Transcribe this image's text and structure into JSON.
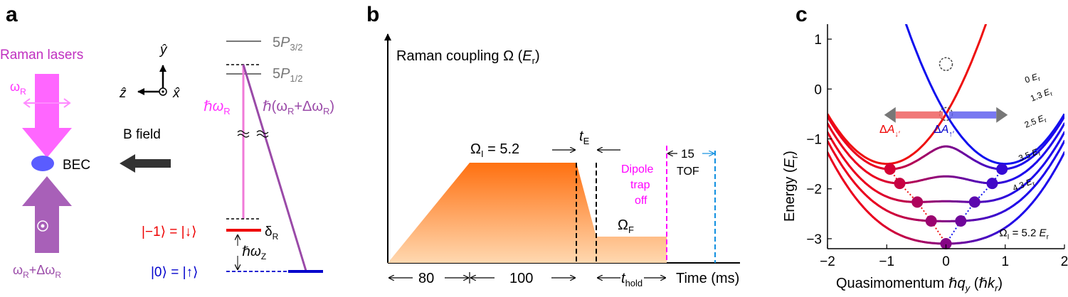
{
  "panels": {
    "a": "a",
    "b": "b",
    "c": "c"
  },
  "panel_a": {
    "raman_lasers": "Raman lasers",
    "omega_r": "ω",
    "omega_r_sub": "R",
    "bec": "BEC",
    "b_field": "B field",
    "bottom_beam_main": "ω",
    "bottom_beam_sub1": "R",
    "bottom_beam_mid": "+Δω",
    "bottom_beam_sub2": "R",
    "axis_y": "ŷ",
    "axis_z": "ẑ",
    "axis_x": "x̂",
    "level_5p32_main": "5",
    "level_5p32_italic": "P",
    "level_5p32_sub": "3/2",
    "level_5p12_main": "5",
    "level_5p12_italic": "P",
    "level_5p12_sub": "1/2",
    "hbar_omega_r": "ℏω",
    "hbar_omega_r_sub": "R",
    "hbar_omega_dr_a": "ℏ(ω",
    "hbar_omega_dr_sub1": "R",
    "hbar_omega_dr_b": "+Δω",
    "hbar_omega_dr_sub2": "R",
    "hbar_omega_dr_c": ")",
    "delta_r": "δ",
    "delta_r_sub": "R",
    "hbar_omega_z": "ℏω",
    "hbar_omega_z_sub": "Z",
    "state_minus1": "|−1⟩ = |↓⟩",
    "state_zero": "|0⟩ = |↑⟩",
    "colors": {
      "magenta": "#ff44ff",
      "purple": "#9a4aa8",
      "red": "#ee0000",
      "blue": "#0000cc",
      "bec": "#5a5cff",
      "gray": "#777777"
    }
  },
  "panel_b": {
    "ylabel": "Raman coupling Ω (",
    "ylabel_unit": "E",
    "ylabel_unit_sub": "r",
    "ylabel_close": ")",
    "omega_i_main": "Ω",
    "omega_i_sub": "I",
    "omega_i_val": " = 5.2",
    "t_e": "t",
    "t_e_sub": "E",
    "omega_f": "Ω",
    "omega_f_sub": "F",
    "dipole_line1": "Dipole",
    "dipole_line2": "trap",
    "dipole_line3": "off",
    "tof_val": "15",
    "tof": "TOF",
    "dur1": "80",
    "dur2": "100",
    "t_hold": "t",
    "t_hold_sub": "hold",
    "xlabel": "Time (ms)",
    "colors": {
      "ramp_top": "#ff7010",
      "ramp_bottom": "#ffd8b0",
      "dipole": "#ff00ff",
      "tof_line": "#1090e0"
    }
  },
  "chart_data": {
    "type": "line",
    "xlabel": "Quasimomentum ℏq_y (ℏk_r)",
    "ylabel": "Energy (E_r)",
    "xlim": [
      -2,
      2
    ],
    "ylim": [
      -3.2,
      1.3
    ],
    "xticks": [
      "−2",
      "−1",
      "0",
      "1",
      "2"
    ],
    "yticks": [
      "−3",
      "−2",
      "−1",
      "0",
      "1"
    ],
    "series": [
      {
        "name": "0 E_r",
        "omega": 0
      },
      {
        "name": "1.3 E_r",
        "omega": 1.3
      },
      {
        "name": "2.5 E_r",
        "omega": 2.5
      },
      {
        "name": "3.5 E_r",
        "omega": 3.5
      },
      {
        "name": "4.3 E_r",
        "omega": 4.3
      },
      {
        "name": "Ω_I = 5.2 E_r",
        "omega": 5.2
      }
    ],
    "annotations": [
      "ΔA↓′",
      "ΔA↑′"
    ]
  }
}
